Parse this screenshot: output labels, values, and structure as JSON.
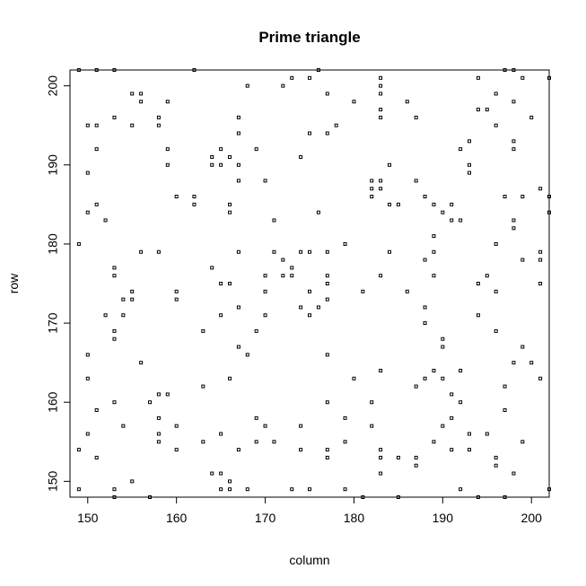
{
  "chart_data": {
    "type": "scatter",
    "title": "Prime triangle",
    "xlabel": "column",
    "ylabel": "row",
    "xlim": [
      148,
      202
    ],
    "ylim": [
      148,
      202
    ],
    "xticks": [
      150,
      160,
      170,
      180,
      190,
      200
    ],
    "yticks": [
      150,
      160,
      170,
      180,
      190,
      200
    ],
    "grid": false,
    "legend": "none",
    "marker_color": "#000000",
    "points": [
      [
        149,
        149
      ],
      [
        149,
        154
      ],
      [
        149,
        180
      ],
      [
        149,
        202
      ],
      [
        150,
        156
      ],
      [
        150,
        163
      ],
      [
        150,
        166
      ],
      [
        150,
        184
      ],
      [
        150,
        189
      ],
      [
        150,
        195
      ],
      [
        151,
        153
      ],
      [
        151,
        159
      ],
      [
        151,
        185
      ],
      [
        151,
        192
      ],
      [
        151,
        195
      ],
      [
        151,
        202
      ],
      [
        152,
        171
      ],
      [
        152,
        183
      ],
      [
        153,
        148
      ],
      [
        153,
        149
      ],
      [
        153,
        160
      ],
      [
        153,
        168
      ],
      [
        153,
        169
      ],
      [
        153,
        176
      ],
      [
        153,
        177
      ],
      [
        153,
        196
      ],
      [
        153,
        202
      ],
      [
        154,
        157
      ],
      [
        154,
        171
      ],
      [
        154,
        173
      ],
      [
        155,
        150
      ],
      [
        155,
        173
      ],
      [
        155,
        174
      ],
      [
        155,
        195
      ],
      [
        155,
        199
      ],
      [
        156,
        165
      ],
      [
        156,
        179
      ],
      [
        156,
        198
      ],
      [
        156,
        199
      ],
      [
        157,
        148
      ],
      [
        157,
        160
      ],
      [
        158,
        155
      ],
      [
        158,
        156
      ],
      [
        158,
        158
      ],
      [
        158,
        161
      ],
      [
        158,
        179
      ],
      [
        158,
        195
      ],
      [
        158,
        196
      ],
      [
        159,
        161
      ],
      [
        159,
        190
      ],
      [
        159,
        192
      ],
      [
        159,
        198
      ],
      [
        160,
        154
      ],
      [
        160,
        157
      ],
      [
        160,
        173
      ],
      [
        160,
        174
      ],
      [
        160,
        186
      ],
      [
        162,
        185
      ],
      [
        162,
        186
      ],
      [
        162,
        202
      ],
      [
        163,
        155
      ],
      [
        163,
        162
      ],
      [
        163,
        169
      ],
      [
        164,
        151
      ],
      [
        164,
        177
      ],
      [
        164,
        190
      ],
      [
        164,
        191
      ],
      [
        165,
        149
      ],
      [
        165,
        151
      ],
      [
        165,
        156
      ],
      [
        165,
        171
      ],
      [
        165,
        175
      ],
      [
        165,
        190
      ],
      [
        165,
        192
      ],
      [
        166,
        149
      ],
      [
        166,
        150
      ],
      [
        166,
        163
      ],
      [
        166,
        175
      ],
      [
        166,
        184
      ],
      [
        166,
        185
      ],
      [
        166,
        191
      ],
      [
        167,
        154
      ],
      [
        167,
        167
      ],
      [
        167,
        172
      ],
      [
        167,
        179
      ],
      [
        167,
        188
      ],
      [
        167,
        190
      ],
      [
        167,
        194
      ],
      [
        167,
        196
      ],
      [
        168,
        149
      ],
      [
        168,
        166
      ],
      [
        168,
        200
      ],
      [
        169,
        155
      ],
      [
        169,
        158
      ],
      [
        169,
        169
      ],
      [
        169,
        192
      ],
      [
        170,
        157
      ],
      [
        170,
        171
      ],
      [
        170,
        174
      ],
      [
        170,
        176
      ],
      [
        170,
        188
      ],
      [
        171,
        155
      ],
      [
        171,
        179
      ],
      [
        171,
        183
      ],
      [
        172,
        176
      ],
      [
        172,
        178
      ],
      [
        172,
        200
      ],
      [
        173,
        149
      ],
      [
        173,
        176
      ],
      [
        173,
        177
      ],
      [
        173,
        201
      ],
      [
        174,
        154
      ],
      [
        174,
        157
      ],
      [
        174,
        172
      ],
      [
        174,
        179
      ],
      [
        174,
        191
      ],
      [
        175,
        149
      ],
      [
        175,
        171
      ],
      [
        175,
        174
      ],
      [
        175,
        179
      ],
      [
        175,
        194
      ],
      [
        175,
        201
      ],
      [
        176,
        172
      ],
      [
        176,
        184
      ],
      [
        176,
        202
      ],
      [
        177,
        153
      ],
      [
        177,
        154
      ],
      [
        177,
        160
      ],
      [
        177,
        166
      ],
      [
        177,
        173
      ],
      [
        177,
        175
      ],
      [
        177,
        176
      ],
      [
        177,
        179
      ],
      [
        177,
        194
      ],
      [
        177,
        199
      ],
      [
        178,
        195
      ],
      [
        179,
        149
      ],
      [
        179,
        155
      ],
      [
        179,
        158
      ],
      [
        179,
        180
      ],
      [
        180,
        163
      ],
      [
        180,
        198
      ],
      [
        181,
        148
      ],
      [
        181,
        174
      ],
      [
        182,
        157
      ],
      [
        182,
        160
      ],
      [
        182,
        186
      ],
      [
        182,
        187
      ],
      [
        182,
        188
      ],
      [
        183,
        151
      ],
      [
        183,
        153
      ],
      [
        183,
        154
      ],
      [
        183,
        164
      ],
      [
        183,
        176
      ],
      [
        183,
        187
      ],
      [
        183,
        188
      ],
      [
        183,
        196
      ],
      [
        183,
        197
      ],
      [
        183,
        199
      ],
      [
        183,
        200
      ],
      [
        183,
        201
      ],
      [
        184,
        179
      ],
      [
        184,
        185
      ],
      [
        184,
        190
      ],
      [
        185,
        148
      ],
      [
        185,
        153
      ],
      [
        185,
        185
      ],
      [
        186,
        174
      ],
      [
        186,
        198
      ],
      [
        187,
        152
      ],
      [
        187,
        153
      ],
      [
        187,
        162
      ],
      [
        187,
        188
      ],
      [
        187,
        196
      ],
      [
        188,
        163
      ],
      [
        188,
        170
      ],
      [
        188,
        172
      ],
      [
        188,
        178
      ],
      [
        188,
        186
      ],
      [
        189,
        155
      ],
      [
        189,
        164
      ],
      [
        189,
        176
      ],
      [
        189,
        179
      ],
      [
        189,
        181
      ],
      [
        189,
        185
      ],
      [
        190,
        157
      ],
      [
        190,
        163
      ],
      [
        190,
        167
      ],
      [
        190,
        168
      ],
      [
        190,
        184
      ],
      [
        191,
        154
      ],
      [
        191,
        158
      ],
      [
        191,
        161
      ],
      [
        191,
        183
      ],
      [
        191,
        185
      ],
      [
        192,
        149
      ],
      [
        192,
        160
      ],
      [
        192,
        164
      ],
      [
        192,
        183
      ],
      [
        192,
        192
      ],
      [
        193,
        154
      ],
      [
        193,
        156
      ],
      [
        193,
        189
      ],
      [
        193,
        190
      ],
      [
        193,
        193
      ],
      [
        194,
        148
      ],
      [
        194,
        171
      ],
      [
        194,
        175
      ],
      [
        194,
        197
      ],
      [
        194,
        201
      ],
      [
        195,
        156
      ],
      [
        195,
        176
      ],
      [
        195,
        197
      ],
      [
        196,
        152
      ],
      [
        196,
        153
      ],
      [
        196,
        169
      ],
      [
        196,
        174
      ],
      [
        196,
        180
      ],
      [
        196,
        195
      ],
      [
        196,
        199
      ],
      [
        197,
        148
      ],
      [
        197,
        159
      ],
      [
        197,
        162
      ],
      [
        197,
        186
      ],
      [
        197,
        202
      ],
      [
        198,
        151
      ],
      [
        198,
        165
      ],
      [
        198,
        182
      ],
      [
        198,
        183
      ],
      [
        198,
        192
      ],
      [
        198,
        193
      ],
      [
        198,
        198
      ],
      [
        198,
        202
      ],
      [
        199,
        155
      ],
      [
        199,
        167
      ],
      [
        199,
        178
      ],
      [
        199,
        186
      ],
      [
        199,
        201
      ],
      [
        200,
        165
      ],
      [
        200,
        196
      ],
      [
        201,
        163
      ],
      [
        201,
        175
      ],
      [
        201,
        178
      ],
      [
        201,
        179
      ],
      [
        201,
        187
      ],
      [
        202,
        149
      ],
      [
        202,
        184
      ],
      [
        202,
        186
      ],
      [
        202,
        201
      ]
    ]
  }
}
